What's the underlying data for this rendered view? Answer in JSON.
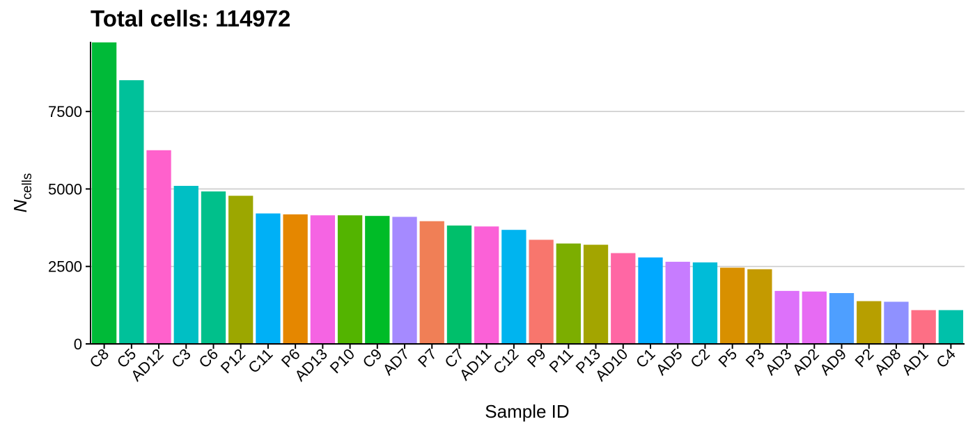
{
  "chart_data": {
    "type": "bar",
    "title": "Total cells: 114972",
    "xlabel": "Sample ID",
    "ylabel": "N",
    "ylabel_sub": "cells",
    "ylim": [
      0,
      9750
    ],
    "yticks": [
      0,
      2500,
      5000,
      7500
    ],
    "grid": "horizontal major",
    "legend": "none",
    "categories": [
      "C8",
      "C5",
      "AD12",
      "C3",
      "C6",
      "P12",
      "C11",
      "P6",
      "AD13",
      "P10",
      "C9",
      "AD7",
      "P7",
      "C7",
      "AD11",
      "C12",
      "P9",
      "P11",
      "P13",
      "AD10",
      "C1",
      "AD5",
      "C2",
      "P5",
      "P3",
      "AD3",
      "AD2",
      "AD9",
      "P2",
      "AD8",
      "AD1",
      "C4"
    ],
    "values": [
      9730,
      8510,
      6250,
      5100,
      4920,
      4780,
      4210,
      4180,
      4150,
      4150,
      4130,
      4100,
      3960,
      3820,
      3790,
      3680,
      3360,
      3240,
      3200,
      2930,
      2790,
      2650,
      2630,
      2460,
      2410,
      1710,
      1690,
      1640,
      1380,
      1360,
      1090,
      1090
    ],
    "colors": [
      "#00BA38",
      "#00C19A",
      "#FF61CC",
      "#00BFC4",
      "#00C08B",
      "#9CA700",
      "#00B0F6",
      "#E58700",
      "#F564E3",
      "#53B400",
      "#00BC27",
      "#A58AFF",
      "#F07F56",
      "#00BF6B",
      "#FB61D7",
      "#00B4EF",
      "#F8766D",
      "#7CAE00",
      "#A3A500",
      "#FF67A4",
      "#00A9FF",
      "#C77CFF",
      "#00BCD8",
      "#D89000",
      "#C49A00",
      "#DD71FA",
      "#E76BF3",
      "#4E9FFF",
      "#B79F00",
      "#8F91FF",
      "#FD6F85",
      "#00C1AA"
    ]
  }
}
